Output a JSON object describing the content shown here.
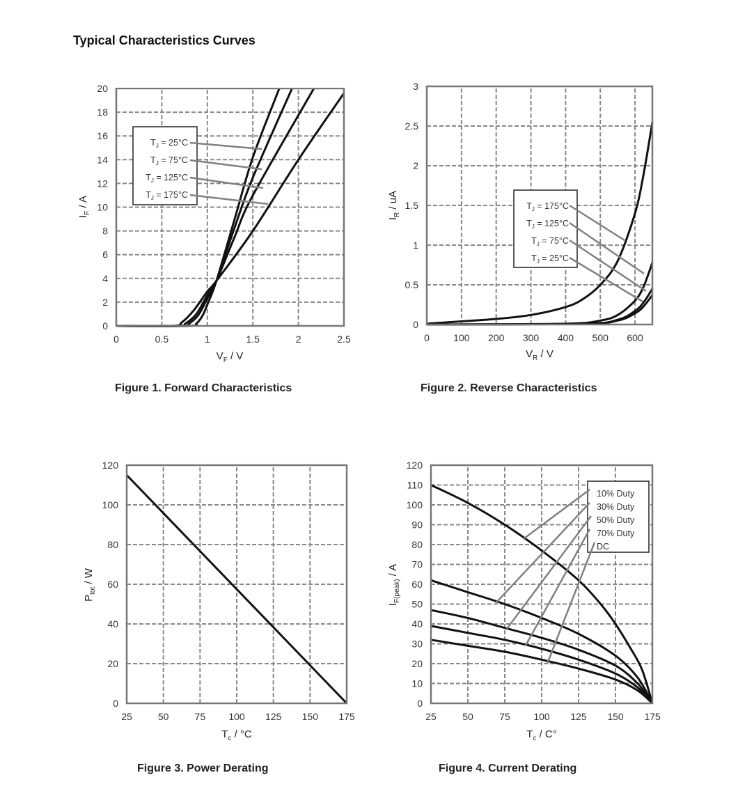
{
  "title": "Typical Characteristics Curves",
  "captions": [
    "Figure 1. Forward Characteristics",
    "Figure 2. Reverse Characteristics",
    "Figure 3. Power Derating",
    "Figure 4. Current Derating"
  ],
  "colors": {
    "curve": "#111111",
    "grid": "#888888",
    "frame": "#777777",
    "leader": "#808080"
  },
  "chart_data": [
    {
      "type": "line",
      "title": "Figure 1. Forward Characteristics",
      "xlabel": {
        "base": "V",
        "sub": "F",
        "unit": " / V"
      },
      "ylabel": {
        "base": "I",
        "sub": "F",
        "unit": " / A"
      },
      "xlim": [
        0,
        2.5
      ],
      "ylim": [
        0,
        20
      ],
      "xticks": [
        "0",
        "0.5",
        "1",
        "1.5",
        "2",
        "2.5"
      ],
      "yticks": [
        "0",
        "2",
        "4",
        "6",
        "8",
        "10",
        "12",
        "14",
        "16",
        "18",
        "20"
      ],
      "grid": true,
      "legend": "upper-left",
      "series": [
        {
          "name": "TJ = 25°C",
          "points": [
            [
              0,
              0
            ],
            [
              0.8,
              0
            ],
            [
              0.88,
              0.2
            ],
            [
              0.95,
              0.9
            ],
            [
              1.0,
              1.8
            ],
            [
              1.1,
              3.8
            ],
            [
              1.3,
              9
            ],
            [
              1.5,
              14.2
            ],
            [
              1.79,
              20
            ]
          ]
        },
        {
          "name": "TJ = 75°C",
          "points": [
            [
              0,
              0
            ],
            [
              0.72,
              0
            ],
            [
              0.8,
              0.2
            ],
            [
              0.9,
              0.9
            ],
            [
              1.0,
              2.3
            ],
            [
              1.1,
              3.8
            ],
            [
              1.3,
              8.3
            ],
            [
              1.5,
              12.5
            ],
            [
              1.93,
              20
            ]
          ]
        },
        {
          "name": "TJ = 125°C",
          "points": [
            [
              0,
              0
            ],
            [
              0.68,
              0
            ],
            [
              0.76,
              0.2
            ],
            [
              0.88,
              1.0
            ],
            [
              1.0,
              2.6
            ],
            [
              1.1,
              3.8
            ],
            [
              1.3,
              7.5
            ],
            [
              1.5,
              11
            ],
            [
              2.17,
              20
            ]
          ]
        },
        {
          "name": "TJ = 175°C",
          "points": [
            [
              0,
              0
            ],
            [
              0.62,
              0
            ],
            [
              0.72,
              0.3
            ],
            [
              0.85,
              1.3
            ],
            [
              1.0,
              2.9
            ],
            [
              1.1,
              3.8
            ],
            [
              1.5,
              8
            ],
            [
              2.0,
              14
            ],
            [
              2.5,
              19.6
            ]
          ]
        }
      ]
    },
    {
      "type": "line",
      "title": "Figure 2. Reverse Characteristics",
      "xlabel": {
        "base": "V",
        "sub": "R",
        "unit": " / V"
      },
      "ylabel": {
        "base": "I",
        "sub": "R",
        "unit": " / uA"
      },
      "xlim": [
        0,
        650
      ],
      "ylim": [
        0,
        3
      ],
      "xticks": [
        "0",
        "100",
        "200",
        "300",
        "400",
        "500",
        "600"
      ],
      "yticks": [
        "0",
        "0.5",
        "1",
        "1.5",
        "2",
        "2.5",
        "3"
      ],
      "grid": true,
      "legend": "center-right",
      "series": [
        {
          "name": "TJ = 175°C",
          "points": [
            [
              0,
              0.01
            ],
            [
              100,
              0.04
            ],
            [
              200,
              0.07
            ],
            [
              300,
              0.12
            ],
            [
              400,
              0.22
            ],
            [
              450,
              0.32
            ],
            [
              500,
              0.5
            ],
            [
              550,
              0.8
            ],
            [
              600,
              1.4
            ],
            [
              625,
              1.9
            ],
            [
              650,
              2.55
            ]
          ]
        },
        {
          "name": "TJ = 125°C",
          "points": [
            [
              0,
              0
            ],
            [
              400,
              0.01
            ],
            [
              500,
              0.05
            ],
            [
              550,
              0.12
            ],
            [
              600,
              0.3
            ],
            [
              625,
              0.48
            ],
            [
              650,
              0.78
            ]
          ]
        },
        {
          "name": "TJ = 75°C",
          "points": [
            [
              0,
              0
            ],
            [
              450,
              0.01
            ],
            [
              550,
              0.06
            ],
            [
              600,
              0.17
            ],
            [
              625,
              0.28
            ],
            [
              650,
              0.45
            ]
          ]
        },
        {
          "name": "TJ = 25°C",
          "points": [
            [
              0,
              0
            ],
            [
              450,
              0.01
            ],
            [
              550,
              0.05
            ],
            [
              600,
              0.14
            ],
            [
              625,
              0.23
            ],
            [
              650,
              0.37
            ]
          ]
        }
      ]
    },
    {
      "type": "line",
      "title": "Figure 3. Power Derating",
      "xlabel": {
        "base": "T",
        "sub": "c",
        "unit": " / °C"
      },
      "ylabel": {
        "base": "P",
        "sub": "tot",
        "unit": " / W"
      },
      "xlim": [
        25,
        175
      ],
      "ylim": [
        0,
        120
      ],
      "xticks": [
        "25",
        "50",
        "75",
        "100",
        "125",
        "150",
        "175"
      ],
      "yticks": [
        "0",
        "20",
        "40",
        "60",
        "80",
        "100",
        "120"
      ],
      "grid": true,
      "series": [
        {
          "points": [
            [
              25,
              115
            ],
            [
              175,
              0
            ]
          ]
        }
      ]
    },
    {
      "type": "line",
      "title": "Figure 4. Current Derating",
      "xlabel": {
        "base": "T",
        "sub": "c",
        "unit": " / C°"
      },
      "ylabel": {
        "base": "I",
        "sub": "F(peak)",
        "unit": " / A"
      },
      "xlim": [
        25,
        175
      ],
      "ylim": [
        0,
        120
      ],
      "xticks": [
        "25",
        "50",
        "75",
        "100",
        "125",
        "150",
        "175"
      ],
      "yticks": [
        "0",
        "10",
        "20",
        "30",
        "40",
        "50",
        "60",
        "70",
        "80",
        "90",
        "100",
        "110",
        "120"
      ],
      "grid": true,
      "legend": "upper-right",
      "series": [
        {
          "name": "10% Duty",
          "points": [
            [
              25,
              110
            ],
            [
              50,
              101
            ],
            [
              75,
              90
            ],
            [
              100,
              77
            ],
            [
              125,
              62
            ],
            [
              140,
              50
            ],
            [
              150,
              40
            ],
            [
              160,
              28
            ],
            [
              168,
              17
            ],
            [
              175,
              0
            ]
          ]
        },
        {
          "name": "30% Duty",
          "points": [
            [
              25,
              62
            ],
            [
              50,
              56
            ],
            [
              75,
              50
            ],
            [
              100,
              43
            ],
            [
              125,
              35
            ],
            [
              150,
              24
            ],
            [
              165,
              13
            ],
            [
              175,
              0
            ]
          ]
        },
        {
          "name": "50% Duty",
          "points": [
            [
              25,
              47
            ],
            [
              50,
              43
            ],
            [
              75,
              38
            ],
            [
              100,
              33
            ],
            [
              125,
              27
            ],
            [
              150,
              19
            ],
            [
              165,
              10
            ],
            [
              175,
              0
            ]
          ]
        },
        {
          "name": "70% Duty",
          "points": [
            [
              25,
              39
            ],
            [
              50,
              35.5
            ],
            [
              75,
              32
            ],
            [
              100,
              27.5
            ],
            [
              125,
              22
            ],
            [
              150,
              15
            ],
            [
              165,
              8
            ],
            [
              175,
              0
            ]
          ]
        },
        {
          "name": "DC",
          "points": [
            [
              25,
              32
            ],
            [
              50,
              29
            ],
            [
              75,
              26
            ],
            [
              100,
              22
            ],
            [
              125,
              17.5
            ],
            [
              150,
              12
            ],
            [
              165,
              6.5
            ],
            [
              175,
              0
            ]
          ]
        }
      ]
    }
  ]
}
